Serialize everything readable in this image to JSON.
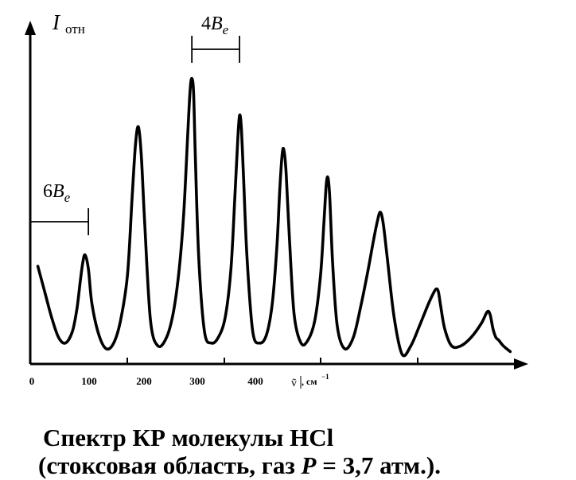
{
  "chart_data": {
    "type": "line",
    "title": "",
    "ylabel_main": "I",
    "ylabel_sub": "отн",
    "xlabel_symbol": "ṽ",
    "xlabel_unit": ", см",
    "xlabel_exp": "−1",
    "x_ticks": [
      {
        "value": 0,
        "label": "0"
      },
      {
        "value": 100,
        "label": "100"
      },
      {
        "value": 200,
        "label": "200"
      },
      {
        "value": 300,
        "label": "300"
      },
      {
        "value": 400,
        "label": "400"
      }
    ],
    "xlim": [
      0,
      850
    ],
    "ylim": [
      0,
      1.0
    ],
    "grid": false,
    "series": [
      {
        "x": [
          16,
          28,
          40,
          52,
          64,
          76,
          84,
          90,
          94,
          98,
          104,
          110,
          122,
          135,
          148,
          160,
          172,
          180,
          186,
          191,
          196,
          202,
          212,
          225,
          240,
          252,
          262,
          270,
          277,
          281,
          284,
          287,
          290,
          296,
          306,
          318,
          330,
          342,
          352,
          359,
          364,
          367,
          370,
          374,
          380,
          390,
          402,
          414,
          424,
          432,
          437,
          441,
          444,
          448,
          454,
          462,
          474,
          486,
          498,
          508,
          514,
          518,
          521,
          524,
          529,
          537,
          550,
          565,
          578,
          590,
          600,
          607,
          612,
          617,
          624,
          636,
          650,
          665,
          680,
          694,
          703,
          709,
          713,
          717,
          724,
          736,
          752,
          770,
          788,
          798,
          803,
          808,
          813,
          818,
          826,
          838
        ],
        "y": [
          0.31,
          0.22,
          0.13,
          0.06,
          0.04,
          0.08,
          0.16,
          0.26,
          0.32,
          0.35,
          0.3,
          0.18,
          0.07,
          0.02,
          0.04,
          0.12,
          0.28,
          0.55,
          0.74,
          0.8,
          0.7,
          0.46,
          0.12,
          0.03,
          0.06,
          0.15,
          0.3,
          0.5,
          0.78,
          0.93,
          0.97,
          0.92,
          0.7,
          0.34,
          0.08,
          0.04,
          0.06,
          0.13,
          0.3,
          0.56,
          0.76,
          0.84,
          0.8,
          0.62,
          0.34,
          0.08,
          0.04,
          0.07,
          0.18,
          0.38,
          0.58,
          0.7,
          0.72,
          0.64,
          0.4,
          0.14,
          0.04,
          0.05,
          0.12,
          0.28,
          0.47,
          0.6,
          0.62,
          0.55,
          0.32,
          0.1,
          0.02,
          0.06,
          0.17,
          0.29,
          0.4,
          0.47,
          0.5,
          0.46,
          0.34,
          0.13,
          0.0,
          0.03,
          0.1,
          0.17,
          0.21,
          0.23,
          0.22,
          0.17,
          0.09,
          0.03,
          0.03,
          0.06,
          0.11,
          0.15,
          0.14,
          0.09,
          0.06,
          0.05,
          0.03,
          0.01
        ]
      }
    ],
    "annotations": [
      {
        "label_main": "6B",
        "label_sub": "e",
        "from": 0,
        "to": 104
      },
      {
        "label_main": "4B",
        "label_sub": "e",
        "from": 284,
        "to": 367
      }
    ]
  },
  "caption": {
    "line1": "Спектр КР молекулы HCl",
    "line2_prefix": "(стоксовая область, газ ",
    "line2_var": "P",
    "line2_suffix": " = 3,7 атм.)."
  }
}
